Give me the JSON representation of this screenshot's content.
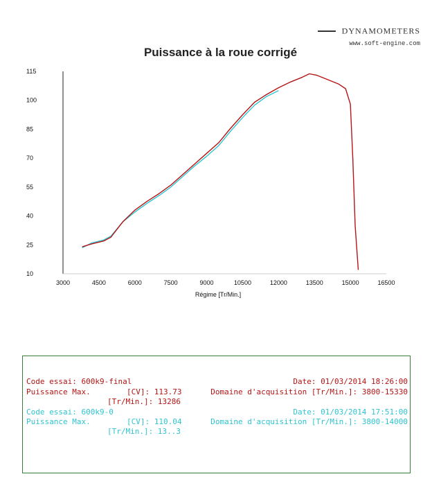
{
  "brand": {
    "name": "DYNAMOMETERS",
    "site": "www.soft-engine.com"
  },
  "chart_data": {
    "type": "line",
    "title": "Puissance à la roue corrigé",
    "xlabel": "Régime [Tr/Min.]",
    "ylabel": "",
    "xlim": [
      3000,
      16500
    ],
    "ylim": [
      10,
      115
    ],
    "xticks": [
      3000,
      4500,
      6000,
      7500,
      9000,
      10500,
      12000,
      13500,
      15000,
      16500
    ],
    "yticks": [
      10,
      25,
      40,
      55,
      70,
      85,
      100,
      115
    ],
    "grid": false,
    "series": [
      {
        "color": "#b41414",
        "x": [
          3800,
          4200,
          4700,
          5000,
          5500,
          6000,
          6500,
          7000,
          7500,
          8000,
          8500,
          9000,
          9500,
          10000,
          10500,
          11000,
          11500,
          12000,
          12500,
          13000,
          13286,
          13600,
          14000,
          14500,
          14800,
          15000,
          15100,
          15200,
          15330
        ],
        "y": [
          24,
          25.5,
          27,
          29,
          37,
          43,
          47.5,
          51.5,
          56,
          61.5,
          67,
          72.5,
          78,
          85.5,
          92.5,
          99,
          103,
          106.5,
          109.5,
          112,
          113.73,
          113,
          111,
          108.5,
          106,
          98,
          70,
          35,
          12
        ]
      },
      {
        "color": "#2ec4d0",
        "x": [
          3800,
          4200,
          4700,
          5000,
          5500,
          6000,
          6500,
          7000,
          7500,
          8000,
          8500,
          9000,
          9500,
          10000,
          10500,
          11000,
          11500,
          12000
        ],
        "y": [
          23.5,
          26,
          27.5,
          29.5,
          37,
          42,
          46.5,
          50.5,
          55,
          60.5,
          66,
          71,
          76.5,
          84,
          91,
          97.5,
          102,
          105
        ]
      }
    ]
  },
  "tests": [
    {
      "code": "Code essai: 600k9-final",
      "date": "Date: 01/03/2014 18:26:00",
      "power_label": "Puissance Max.",
      "power_value": "[CV]: 113.73",
      "domain": "Domaine d'acquisition [Tr/Min.]: 3800-15330",
      "rpm_value": "[Tr/Min.]: 13286"
    },
    {
      "code": "Code essai: 600k9-0",
      "date": "Date: 01/03/2014 17:51:00",
      "power_label": "Puissance Max.",
      "power_value": "[CV]: 110.04",
      "domain": "Domaine d'acquisition [Tr/Min.]: 3800-14000",
      "rpm_value": "[Tr/Min.]: 13..3"
    }
  ]
}
